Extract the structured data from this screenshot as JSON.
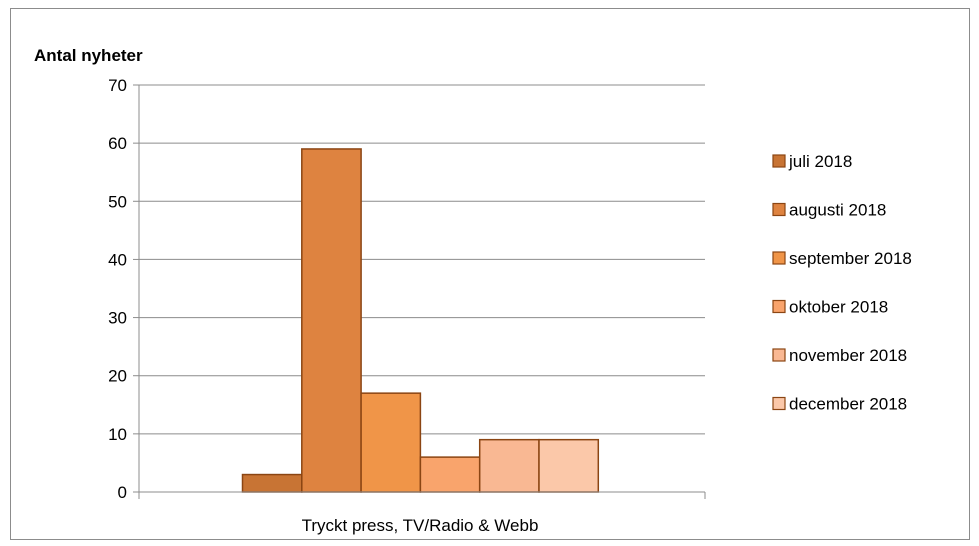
{
  "chart_data": {
    "type": "bar",
    "ylabel": "Antal nyheter",
    "categories": [
      "Tryckt press, TV/Radio & Webb"
    ],
    "ylim": [
      0,
      70
    ],
    "yticks": [
      "0",
      "10",
      "20",
      "30",
      "40",
      "50",
      "60",
      "70"
    ],
    "grid": true,
    "legend_position": "right",
    "series": [
      {
        "name": "juli 2018",
        "values": [
          3
        ],
        "color": "#c87434"
      },
      {
        "name": "augusti 2018",
        "values": [
          59
        ],
        "color": "#de8340"
      },
      {
        "name": "september 2018",
        "values": [
          17
        ],
        "color": "#f09548"
      },
      {
        "name": "oktober 2018",
        "values": [
          6
        ],
        "color": "#f9a46c"
      },
      {
        "name": "november 2018",
        "values": [
          9
        ],
        "color": "#f9b893"
      },
      {
        "name": "december 2018",
        "values": [
          9
        ],
        "color": "#fbc8a9"
      }
    ],
    "bar_stroke": "#8b4513"
  }
}
